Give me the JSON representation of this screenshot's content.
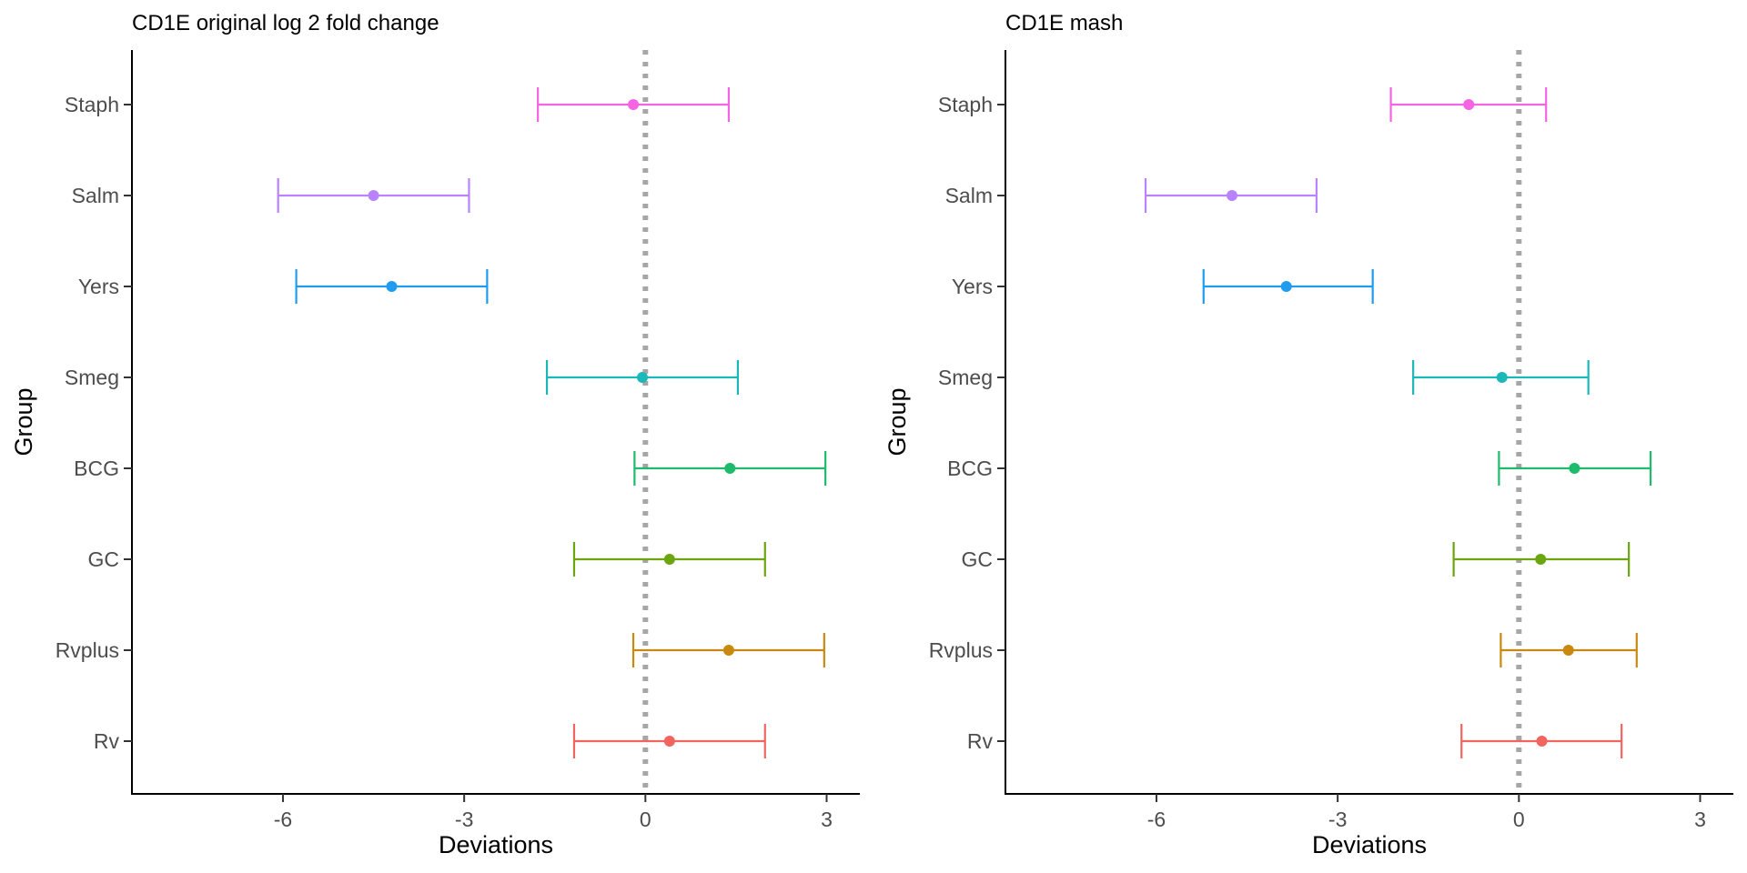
{
  "chart_data": [
    {
      "type": "errorbar",
      "title": "CD1E original log 2 fold change",
      "xlabel": "Deviations",
      "ylabel": "Group",
      "xlim": [
        -8.5,
        3.55
      ],
      "xticks": [
        -6,
        -3,
        0,
        3
      ],
      "reference_line_x": 0,
      "grid": false,
      "legend": "none",
      "categories": [
        "Staph",
        "Salm",
        "Yers",
        "Smeg",
        "BCG",
        "GC",
        "Rvplus",
        "Rv"
      ],
      "colors": [
        "#F564E3",
        "#B983FF",
        "#1F9CF0",
        "#1AB8B8",
        "#1DBB6A",
        "#6BA50F",
        "#C9890E",
        "#F2645E"
      ],
      "estimate": [
        -0.2,
        -4.5,
        -4.2,
        -0.05,
        1.4,
        0.4,
        1.38,
        0.4
      ],
      "lower": [
        -1.78,
        -6.08,
        -5.78,
        -1.63,
        -0.18,
        -1.18,
        -0.2,
        -1.18
      ],
      "upper": [
        1.38,
        -2.92,
        -2.62,
        1.53,
        2.98,
        1.98,
        2.96,
        1.98
      ]
    },
    {
      "type": "errorbar",
      "title": "CD1E mash",
      "xlabel": "Deviations",
      "ylabel": "Group",
      "xlim": [
        -8.5,
        3.55
      ],
      "xticks": [
        -6,
        -3,
        0,
        3
      ],
      "reference_line_x": 0,
      "grid": false,
      "legend": "none",
      "categories": [
        "Staph",
        "Salm",
        "Yers",
        "Smeg",
        "BCG",
        "GC",
        "Rvplus",
        "Rv"
      ],
      "colors": [
        "#F564E3",
        "#B983FF",
        "#1F9CF0",
        "#1AB8B8",
        "#1DBB6A",
        "#6BA50F",
        "#C9890E",
        "#F2645E"
      ],
      "estimate": [
        -0.83,
        -4.75,
        -3.85,
        -0.28,
        0.92,
        0.36,
        0.82,
        0.38
      ],
      "lower": [
        -2.12,
        -6.18,
        -5.22,
        -1.75,
        -0.33,
        -1.08,
        -0.3,
        -0.95
      ],
      "upper": [
        0.45,
        -3.35,
        -2.42,
        1.15,
        2.18,
        1.82,
        1.95,
        1.7
      ]
    }
  ]
}
